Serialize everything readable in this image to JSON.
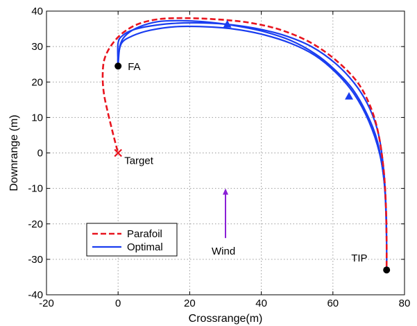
{
  "chart_data": {
    "type": "line",
    "title": "",
    "xlabel": "Crossrange(m)",
    "ylabel": "Downrange (m)",
    "xlim": [
      -20,
      80
    ],
    "ylim": [
      -40,
      40
    ],
    "xticks": [
      -20,
      0,
      20,
      40,
      60,
      80
    ],
    "yticks": [
      -40,
      -30,
      -20,
      -10,
      0,
      10,
      20,
      30,
      40
    ],
    "grid": true,
    "legend_position": "bottom-left",
    "series": [
      {
        "name": "Parafoil",
        "color": "#e8141e",
        "style": "dashed",
        "points": [
          [
            75,
            -32
          ],
          [
            75,
            -25
          ],
          [
            74.8,
            -15
          ],
          [
            74.2,
            -5
          ],
          [
            72.8,
            5
          ],
          [
            70.5,
            13
          ],
          [
            66.8,
            20
          ],
          [
            61,
            26
          ],
          [
            54,
            31
          ],
          [
            46,
            34.5
          ],
          [
            38,
            36.5
          ],
          [
            30,
            37.5
          ],
          [
            20,
            38
          ],
          [
            12,
            37.8
          ],
          [
            6,
            36.5
          ],
          [
            1.5,
            34
          ],
          [
            -1.8,
            30.5
          ],
          [
            -3.8,
            26.5
          ],
          [
            -4.3,
            22
          ],
          [
            -4,
            17
          ],
          [
            -3,
            12
          ],
          [
            -1.8,
            7
          ],
          [
            -0.8,
            3
          ],
          [
            0,
            0
          ]
        ]
      },
      {
        "name": "Optimal",
        "color": "#1a3df0",
        "style": "solid",
        "points": [
          [
            75,
            -33
          ],
          [
            75,
            -25
          ],
          [
            74.8,
            -15
          ],
          [
            74.2,
            -5
          ],
          [
            72.8,
            5
          ],
          [
            70.3,
            12.5
          ],
          [
            66.5,
            19
          ],
          [
            61,
            25
          ],
          [
            54,
            30
          ],
          [
            46,
            33.3
          ],
          [
            38,
            35.2
          ],
          [
            30,
            36.3
          ],
          [
            22,
            36.7
          ],
          [
            15,
            36.5
          ],
          [
            9,
            35.8
          ],
          [
            4.5,
            34.8
          ],
          [
            1.5,
            33.3
          ],
          [
            0,
            31
          ],
          [
            0,
            24.5
          ]
        ]
      }
    ],
    "extra_optimal_strands": [
      [
        [
          75,
          -25
        ],
        [
          74.5,
          -10
        ],
        [
          73,
          0
        ],
        [
          70,
          9
        ],
        [
          66,
          16.5
        ],
        [
          61,
          22.5
        ],
        [
          55,
          27.5
        ],
        [
          48,
          31
        ],
        [
          40,
          33.5
        ],
        [
          32,
          35
        ],
        [
          24,
          35.6
        ],
        [
          16,
          35.6
        ],
        [
          9,
          34.6
        ],
        [
          4,
          33
        ],
        [
          1,
          31
        ],
        [
          0,
          27
        ],
        [
          0,
          24.5
        ]
      ],
      [
        [
          75,
          -20
        ],
        [
          74.3,
          -8
        ],
        [
          72.5,
          3
        ],
        [
          69.5,
          11
        ],
        [
          65.5,
          18
        ],
        [
          60.5,
          23.5
        ],
        [
          55,
          28
        ],
        [
          48,
          31.8
        ],
        [
          40,
          34.4
        ],
        [
          32,
          36
        ],
        [
          24,
          37
        ],
        [
          17,
          37.3
        ],
        [
          11,
          37
        ],
        [
          6,
          35.6
        ],
        [
          2.5,
          33.5
        ],
        [
          0.6,
          30.5
        ],
        [
          0,
          24.5
        ]
      ]
    ],
    "markers": [
      {
        "label": "FA",
        "x": 0,
        "y": 24.5,
        "shape": "circle",
        "color": "#000000"
      },
      {
        "label": "TIP",
        "x": 75,
        "y": -33,
        "shape": "circle",
        "color": "#000000"
      },
      {
        "label": "Target",
        "x": 0,
        "y": 0,
        "shape": "x",
        "color": "#e8141e"
      }
    ],
    "triangles": [
      {
        "x": 30.5,
        "y": 36.3,
        "color": "#1a3df0"
      },
      {
        "x": 64.5,
        "y": 16,
        "color": "#1a3df0"
      }
    ],
    "wind": {
      "label": "Wind",
      "x": 30,
      "y_from": -24,
      "y_to": -10,
      "color": "#8a1fd6"
    }
  }
}
